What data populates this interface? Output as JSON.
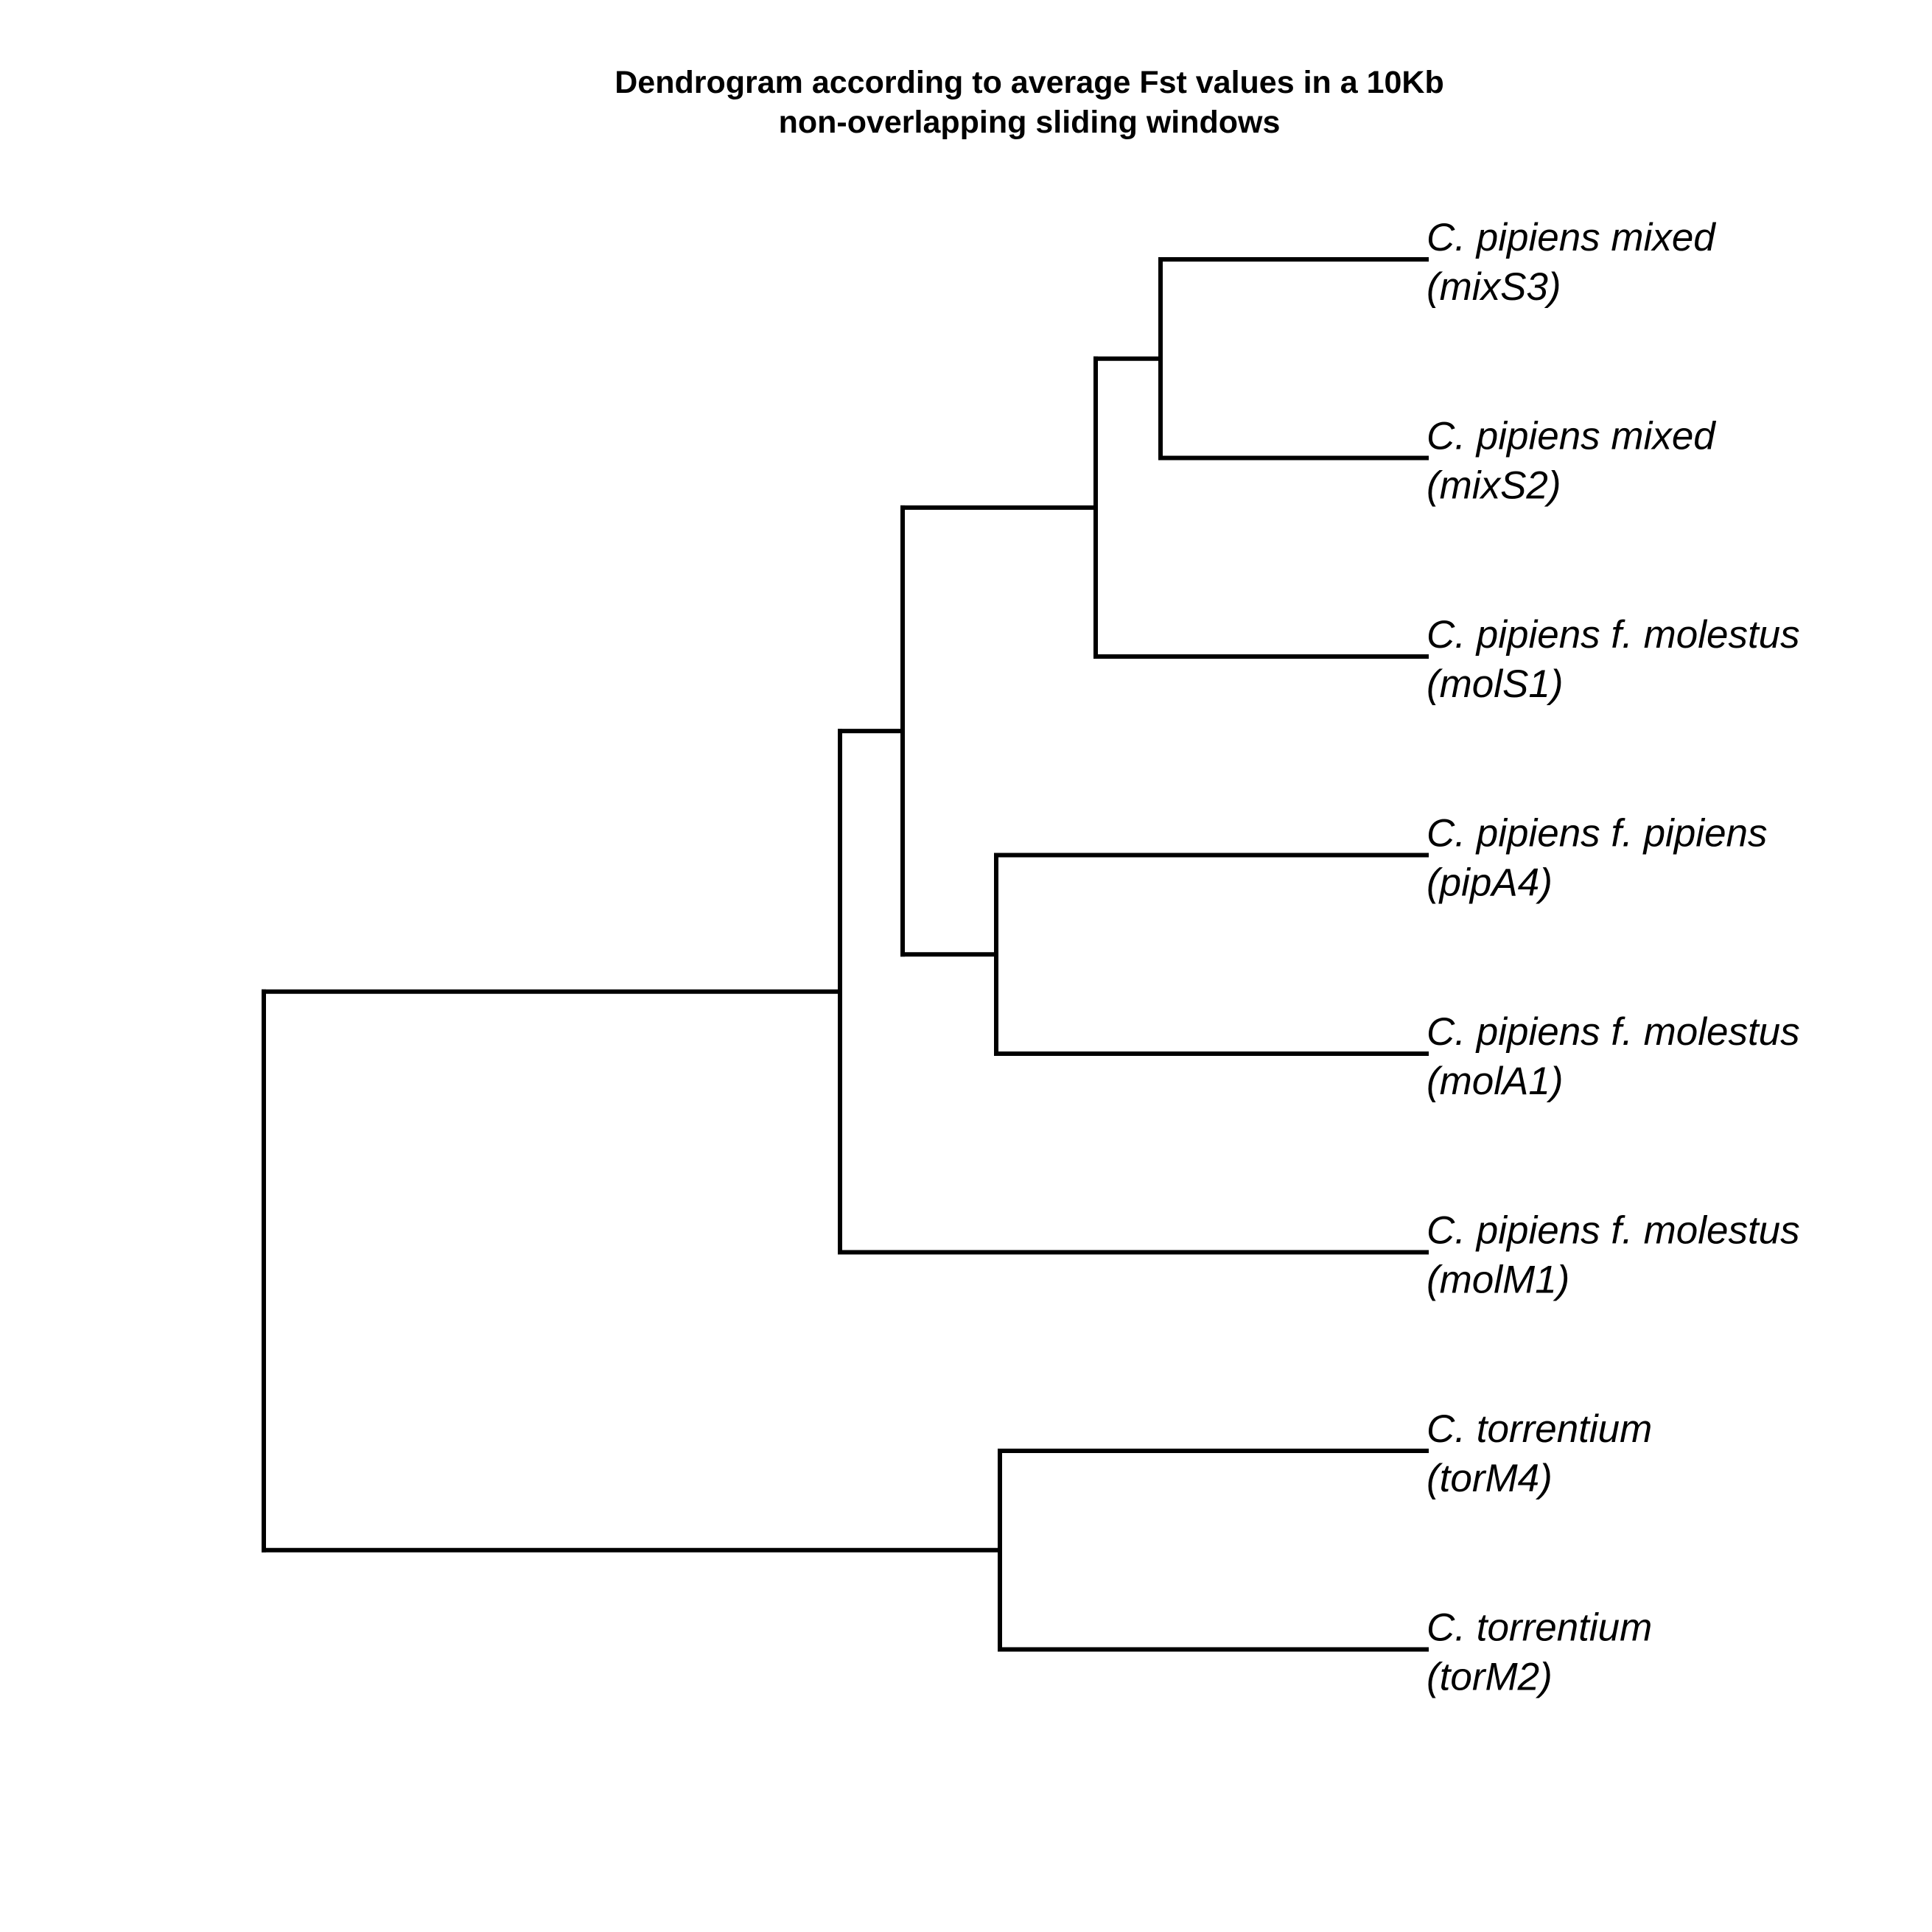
{
  "title": {
    "line1": "Dendrogram according to average Fst values in a 10Kb",
    "line2": "non-overlapping sliding windows"
  },
  "tree": {
    "children": [
      {
        "children": [
          {
            "children": [
              {
                "children": [
                  {
                    "children": [
                      {
                        "label": {
                          "line1": "C. pipiens mixed",
                          "line2": "(mixS3)"
                        }
                      },
                      {
                        "label": {
                          "line1": "C. pipiens mixed",
                          "line2": "(mixS2)"
                        }
                      }
                    ]
                  },
                  {
                    "label": {
                      "line1": "C. pipiens f. molestus",
                      "line2": "(molS1)"
                    }
                  }
                ]
              },
              {
                "children": [
                  {
                    "label": {
                      "line1": "C. pipiens f. pipiens",
                      "line2": "(pipA4)"
                    }
                  },
                  {
                    "label": {
                      "line1": "C. pipiens f. molestus",
                      "line2": "(molA1)"
                    }
                  }
                ]
              }
            ]
          },
          {
            "label": {
              "line1": "C. pipiens f. molestus",
              "line2": "(molM1)"
            }
          }
        ]
      },
      {
        "children": [
          {
            "label": {
              "line1": "C. torrentium",
              "line2": "(torM4)"
            }
          },
          {
            "label": {
              "line1": "C. torrentium",
              "line2": "(torM2)"
            }
          }
        ]
      }
    ]
  },
  "colors": {
    "line": "#000000",
    "text": "#000000",
    "background": "#ffffff"
  }
}
